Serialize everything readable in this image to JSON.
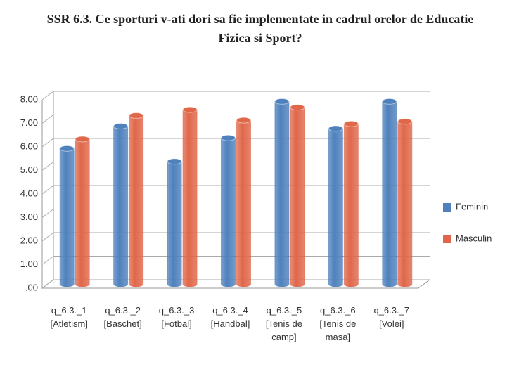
{
  "chart_data": {
    "type": "bar3d",
    "title": "SSR 6.3. Ce sporturi v-ati dori sa fie implementate in cadrul orelor de Educatie Fizica si Sport?",
    "categories": [
      "q_6.3._1 [Atletism]",
      "q_6.3._2 [Baschet]",
      "q_6.3._3 [Fotbal]",
      "q_6.3._4 [Handbal]",
      "q_6.3._5 [Tenis de camp]",
      "q_6.3._6 [Tenis de masa]",
      "q_6.3._7 [Volei]"
    ],
    "series": [
      {
        "name": "Feminin",
        "color": "#4f81bd",
        "values": [
          5.75,
          6.7,
          5.2,
          6.2,
          7.75,
          6.6,
          7.75
        ]
      },
      {
        "name": "Masculin",
        "color": "#e0674a",
        "values": [
          6.15,
          7.15,
          7.4,
          6.95,
          7.5,
          6.8,
          6.9
        ]
      }
    ],
    "ylim": [
      0,
      8
    ],
    "yticks": [
      {
        "value": 0,
        "label": ".00"
      },
      {
        "value": 1,
        "label": "1.00"
      },
      {
        "value": 2,
        "label": "2.00"
      },
      {
        "value": 3,
        "label": "3.00"
      },
      {
        "value": 4,
        "label": "4.00"
      },
      {
        "value": 5,
        "label": "5.00"
      },
      {
        "value": 6,
        "label": "6.00"
      },
      {
        "value": 7,
        "label": "7.00"
      },
      {
        "value": 8,
        "label": "8.00"
      }
    ],
    "grid": true,
    "legend": "right"
  }
}
